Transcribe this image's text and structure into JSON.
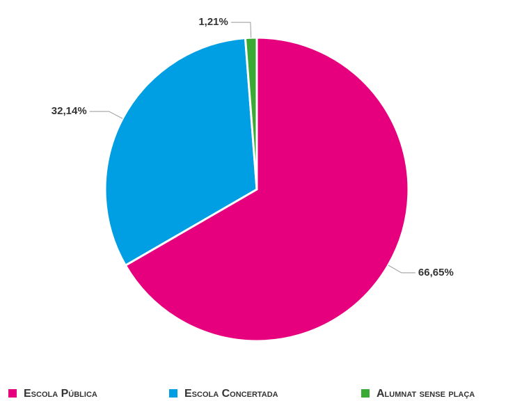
{
  "chart_data": {
    "type": "pie",
    "categories": [
      "Escola Pública",
      "Escola Concertada",
      "Alumnat sense plaça"
    ],
    "values": [
      66.65,
      32.14,
      1.21
    ],
    "value_labels": [
      "66,65%",
      "32,14%",
      "1,21%"
    ],
    "colors": [
      "#e6007e",
      "#009fe3",
      "#3aaa35"
    ],
    "legend": "bottom"
  }
}
